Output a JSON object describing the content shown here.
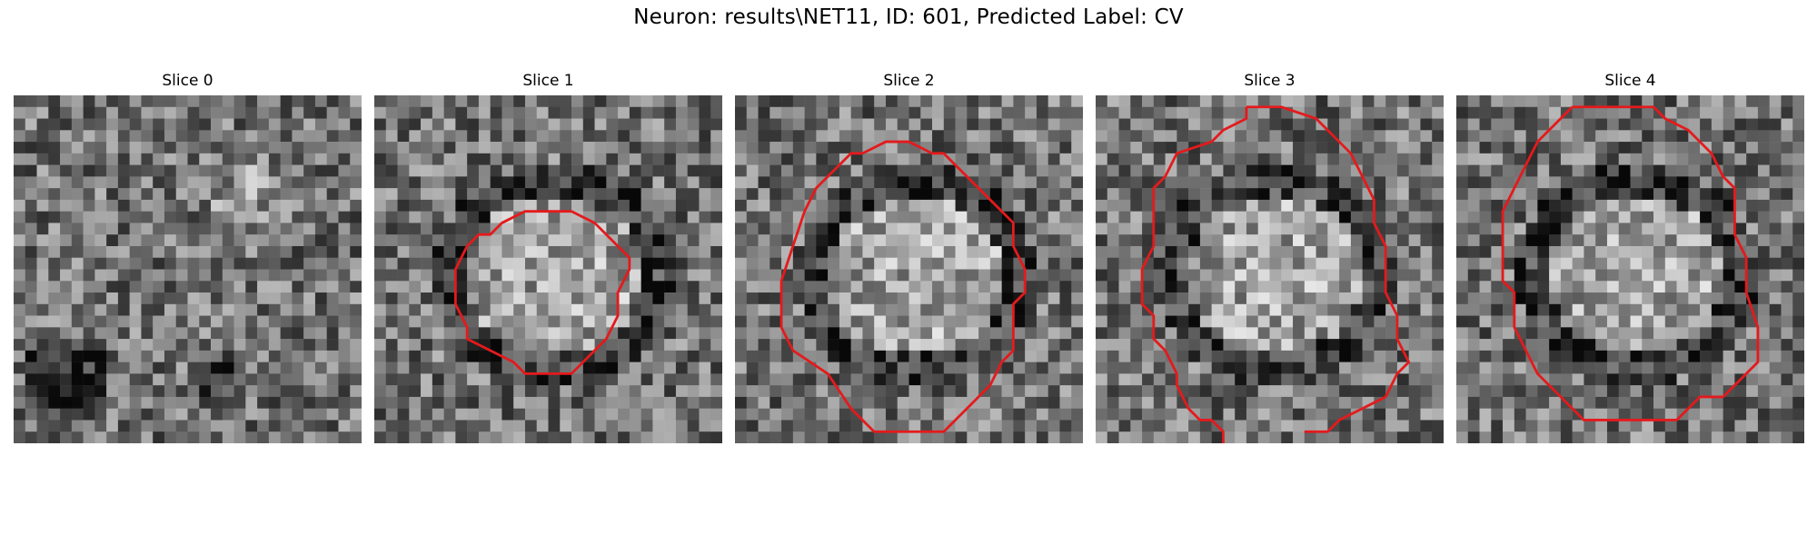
{
  "figure": {
    "title": "Neuron: results\\NET11, ID: 601, Predicted Label: CV"
  },
  "colors": {
    "contour": "#e41a1c",
    "background": "#ffffff",
    "colormap": "gray"
  },
  "panels": [
    {
      "label": "Slice 0",
      "has_contour": false,
      "seed": 11,
      "dark_spots": [
        "lower-left",
        "bottom-center"
      ]
    },
    {
      "label": "Slice 1",
      "has_contour": true,
      "seed": 23,
      "ring_shape": "elliptical"
    },
    {
      "label": "Slice 2",
      "has_contour": true,
      "seed": 37,
      "ring_shape": "elliptical"
    },
    {
      "label": "Slice 3",
      "has_contour": true,
      "seed": 41,
      "ring_shape": "open-bottom"
    },
    {
      "label": "Slice 4",
      "has_contour": true,
      "seed": 59,
      "ring_shape": "elliptical"
    }
  ]
}
